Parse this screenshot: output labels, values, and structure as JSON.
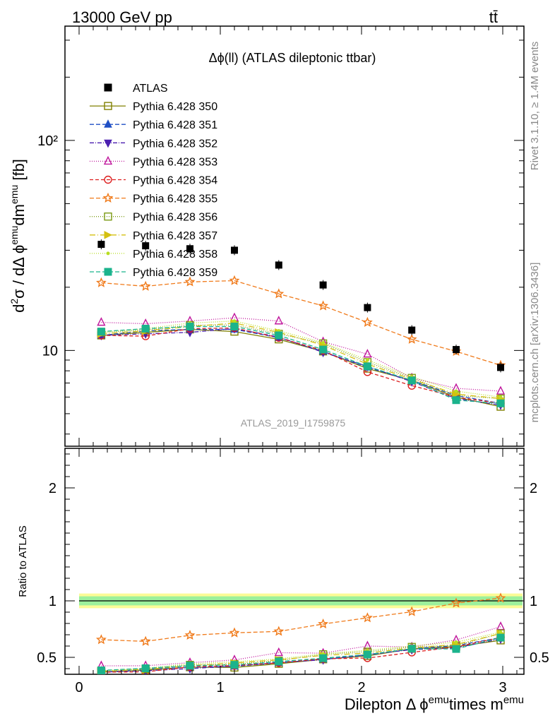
{
  "header": {
    "left": "13000 GeV pp",
    "right": "tt̄"
  },
  "side_labels": {
    "rivet": "Rivet 3.1.10, ≥ 1.4M events",
    "mcplots": "mcplots.cern.ch [arXiv:1306.3436]"
  },
  "chart_data": {
    "type": "scatter",
    "title": "Δϕ(ll) (ATLAS dileptonic ttbar)",
    "watermark": "ATLAS_2019_I1759875",
    "xlabel": "Dilepton Δ ϕ^emu times m^emu",
    "xlabel_parts": {
      "main": "Dilepton Δ ϕ",
      "sup1": "emu",
      "mid": "times m",
      "sup2": "emu"
    },
    "ylabel": "d²σ / dΔ ϕ^emu dm^emu [fb]",
    "ratio_ylabel": "Ratio to ATLAS",
    "xlim": [
      -0.1,
      3.15
    ],
    "ylim_main": [
      3.5,
      350
    ],
    "ylim_ratio": [
      0.35,
      2.35
    ],
    "y_scale_main": "log",
    "x_ticks": [
      "0",
      "1",
      "2",
      "3"
    ],
    "y_ticks_main": [
      "10",
      "10²"
    ],
    "y_ticks_ratio": [
      "0.5",
      "1",
      "2"
    ],
    "legend_position": "top-left",
    "x": [
      0.157,
      0.471,
      0.785,
      1.1,
      1.414,
      1.728,
      2.042,
      2.356,
      2.67,
      2.985
    ],
    "data": {
      "name": "ATLAS",
      "values": [
        32,
        31.5,
        30.5,
        30,
        25.5,
        20.5,
        16,
        12.5,
        10.1,
        8.3
      ]
    },
    "series": [
      {
        "name": "Pythia 6.428 350",
        "color": "#808000",
        "marker": "square-open",
        "dash": "solid",
        "values": [
          11.8,
          12.2,
          12.6,
          12.3,
          11.3,
          9.9,
          8.2,
          7.2,
          6.0,
          5.4
        ]
      },
      {
        "name": "Pythia 6.428 351",
        "color": "#1f4fc4",
        "marker": "triangle-up",
        "dash": "6,3",
        "values": [
          11.8,
          12.4,
          12.6,
          12.6,
          11.5,
          9.9,
          8.3,
          7.2,
          6.1,
          5.6
        ]
      },
      {
        "name": "Pythia 6.428 352",
        "color": "#4b1fb0",
        "marker": "triangle-down",
        "dash": "6,2,1,2",
        "values": [
          11.8,
          12.0,
          12.2,
          12.7,
          11.6,
          9.8,
          8.4,
          7.1,
          5.9,
          5.5
        ]
      },
      {
        "name": "Pythia 6.428 353",
        "color": "#c0169c",
        "marker": "triangle-up-open",
        "dash": "1,2",
        "values": [
          13.6,
          13.4,
          13.8,
          14.3,
          13.8,
          11.0,
          9.6,
          7.4,
          6.6,
          6.4
        ]
      },
      {
        "name": "Pythia 6.428 354",
        "color": "#dd1f1f",
        "marker": "circle-open",
        "dash": "5,3",
        "values": [
          11.8,
          11.7,
          12.7,
          12.8,
          11.5,
          10.0,
          7.9,
          6.8,
          6.0,
          5.6
        ]
      },
      {
        "name": "Pythia 6.428 355",
        "color": "#f07a1a",
        "marker": "star-open",
        "dash": "6,3",
        "values": [
          21.0,
          20.2,
          21.2,
          21.5,
          18.6,
          16.3,
          13.6,
          11.3,
          9.9,
          8.5
        ]
      },
      {
        "name": "Pythia 6.428 356",
        "color": "#7b9a14",
        "marker": "square-open",
        "dash": "1,2",
        "values": [
          12.2,
          12.5,
          13.2,
          13.2,
          12.0,
          10.8,
          8.8,
          7.4,
          6.1,
          5.9
        ]
      },
      {
        "name": "Pythia 6.428 357",
        "color": "#d4c010",
        "marker": "triangle-right",
        "dash": "8,3,1,3",
        "values": [
          12.0,
          12.4,
          13.0,
          13.5,
          12.2,
          10.6,
          8.6,
          7.3,
          6.2,
          5.9
        ]
      },
      {
        "name": "Pythia 6.428 358",
        "color": "#b7dd20",
        "marker": "dot",
        "dash": "1,2",
        "values": [
          12.2,
          12.7,
          13.5,
          13.8,
          12.4,
          10.9,
          9.0,
          7.5,
          6.4,
          6.0
        ]
      },
      {
        "name": "Pythia 6.428 359",
        "color": "#1bb38c",
        "marker": "square",
        "dash": "6,3",
        "values": [
          12.3,
          12.7,
          13.0,
          13.0,
          11.8,
          10.1,
          8.4,
          7.2,
          5.8,
          5.6
        ]
      }
    ],
    "ratio_band": {
      "inner": 0.04,
      "outer": 0.065
    }
  }
}
